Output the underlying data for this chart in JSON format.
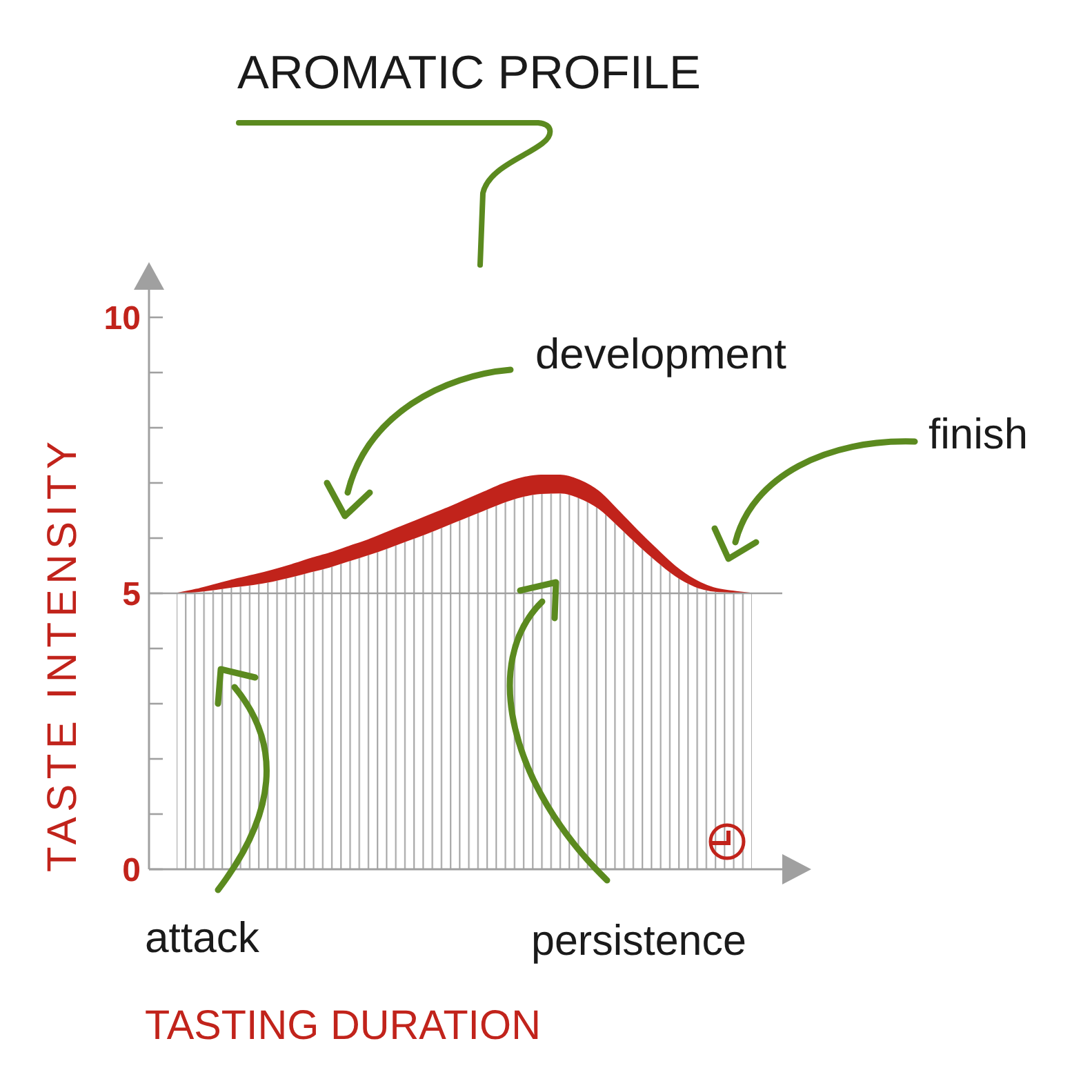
{
  "chart_data": {
    "type": "area",
    "title": "AROMATIC PROFILE",
    "xlabel": "TASTING DURATION",
    "ylabel": "TASTE INTENSITY",
    "categories": [
      null,
      null,
      null,
      null,
      null,
      null,
      null,
      null,
      null,
      null,
      null,
      null,
      null,
      null,
      null,
      null,
      null,
      null,
      null,
      null,
      null,
      null,
      null,
      null,
      null,
      null,
      null,
      null,
      null,
      null,
      null
    ],
    "stacked": true,
    "series": [
      {
        "color": "#a0a0a0",
        "values": [
          5.0,
          5.02,
          5.06,
          5.11,
          5.15,
          5.21,
          5.29,
          5.38,
          5.47,
          5.58,
          5.69,
          5.81,
          5.94,
          6.07,
          6.21,
          6.35,
          6.49,
          6.63,
          6.74,
          6.8,
          6.81,
          6.72,
          6.53,
          6.22,
          5.89,
          5.58,
          5.31,
          5.12,
          5.03,
          5.01,
          5.0
        ]
      },
      {
        "color": "#c1231b",
        "values": [
          0,
          0.05,
          0.1,
          0.14,
          0.18,
          0.21,
          0.23,
          0.25,
          0.26,
          0.27,
          0.28,
          0.3,
          0.31,
          0.32,
          0.32,
          0.33,
          0.34,
          0.35,
          0.35,
          0.34,
          0.33,
          0.33,
          0.32,
          0.29,
          0.26,
          0.23,
          0.18,
          0.13,
          0.07,
          0.03,
          0
        ]
      }
    ],
    "ylim": [
      0,
      10.5
    ],
    "yticks": [
      0,
      {
        "value": 1,
        "label": null
      },
      {
        "value": 2,
        "label": null
      },
      {
        "value": 3,
        "label": null
      },
      {
        "value": 4,
        "label": null
      },
      5,
      {
        "value": 6,
        "label": null
      },
      {
        "value": 7,
        "label": null
      },
      {
        "value": 8,
        "label": null
      },
      {
        "value": 9,
        "label": null
      },
      10
    ],
    "tick_labels": "y",
    "ref_lines": [
      {
        "axis": "y",
        "value": 5,
        "color": "#a0a0a0"
      }
    ],
    "annotations": [
      "development",
      "finish",
      "attack",
      "persistence"
    ]
  }
}
